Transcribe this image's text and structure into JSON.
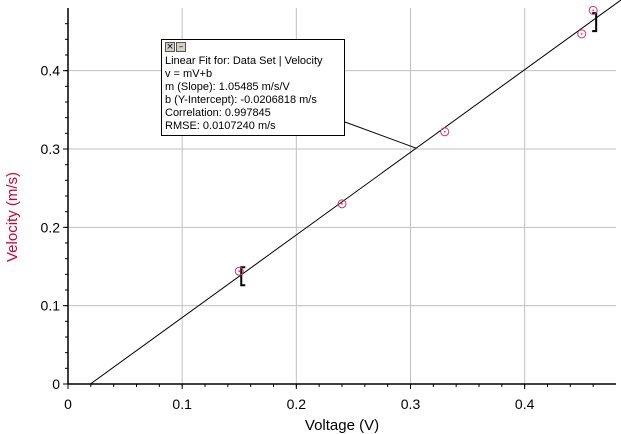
{
  "chart_data": {
    "type": "scatter",
    "title": "",
    "xlabel": "Voltage (V)",
    "ylabel": "Velocity (m/s)",
    "xlim": [
      0,
      0.48
    ],
    "ylim": [
      0,
      0.48
    ],
    "x_ticks": [
      "0",
      "0.1",
      "0.2",
      "0.3",
      "0.4"
    ],
    "y_ticks": [
      "0",
      "0.1",
      "0.2",
      "0.3",
      "0.4"
    ],
    "grid": true,
    "series": [
      {
        "x": [
          0.15,
          0.24,
          0.33,
          0.45,
          0.46
        ],
        "y": [
          0.144,
          0.23,
          0.322,
          0.447,
          0.477
        ]
      }
    ],
    "fit": {
      "slope": 1.05485,
      "intercept": -0.0206818,
      "range_x": [
        0.15,
        0.46
      ],
      "annotation_point_x": 0.305
    },
    "fit_box": {
      "lines": [
        "Linear Fit for: Data Set | Velocity",
        "v = mV+b",
        "m (Slope): 1.05485 m/s/V",
        "b (Y-Intercept): -0.0206818 m/s",
        "Correlation: 0.997845",
        "RMSE: 0.0107240 m/s"
      ]
    },
    "colors": {
      "ylabel": "#cc0033",
      "points": "#dd3366",
      "grid": "#c0c0c0",
      "axes": "#000000"
    }
  }
}
